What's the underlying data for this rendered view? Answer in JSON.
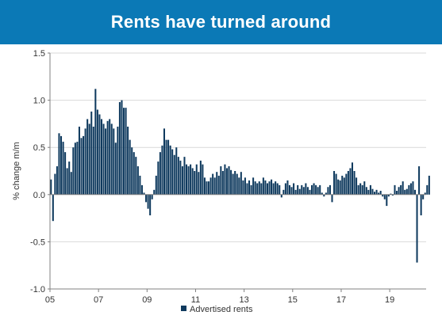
{
  "chart_data": {
    "type": "bar",
    "title": "Rents have turned around",
    "ylabel": "% change m/m",
    "xlabel": "",
    "ylim": [
      -1.0,
      1.5
    ],
    "yticks": [
      -1.0,
      -0.5,
      0.0,
      0.5,
      1.0,
      1.5
    ],
    "ytick_labels": [
      "-1.0",
      "-0.5",
      "0.0",
      "0.5",
      "1.0",
      "1.5"
    ],
    "xtick_labels": [
      "05",
      "07",
      "09",
      "11",
      "13",
      "15",
      "17",
      "19"
    ],
    "xtick_years": [
      2005,
      2007,
      2009,
      2011,
      2013,
      2015,
      2017,
      2019
    ],
    "x_start": "2005-01",
    "x_end": "2020-06",
    "grid": "horizontal",
    "legend_position": "bottom-center",
    "series": [
      {
        "name": "Advertised rents",
        "color": "#0f3a5e",
        "start": "2005-01",
        "values": [
          0.16,
          -0.28,
          0.22,
          0.3,
          0.65,
          0.62,
          0.56,
          0.45,
          0.28,
          0.35,
          0.24,
          0.5,
          0.55,
          0.56,
          0.72,
          0.6,
          0.62,
          0.7,
          0.8,
          0.75,
          0.88,
          0.72,
          1.12,
          0.9,
          0.85,
          0.8,
          0.75,
          0.7,
          0.78,
          0.8,
          0.75,
          0.7,
          0.55,
          0.72,
          0.98,
          1.0,
          0.92,
          0.92,
          0.72,
          0.58,
          0.5,
          0.45,
          0.4,
          0.3,
          0.2,
          0.1,
          0.02,
          -0.08,
          -0.15,
          -0.22,
          -0.05,
          0.05,
          0.2,
          0.35,
          0.45,
          0.52,
          0.7,
          0.58,
          0.58,
          0.52,
          0.48,
          0.42,
          0.5,
          0.4,
          0.36,
          0.3,
          0.4,
          0.32,
          0.3,
          0.32,
          0.28,
          0.25,
          0.32,
          0.24,
          0.36,
          0.32,
          0.18,
          0.14,
          0.14,
          0.18,
          0.22,
          0.18,
          0.24,
          0.2,
          0.3,
          0.25,
          0.32,
          0.28,
          0.3,
          0.26,
          0.22,
          0.25,
          0.22,
          0.18,
          0.24,
          0.15,
          0.18,
          0.12,
          0.15,
          0.1,
          0.18,
          0.14,
          0.12,
          0.14,
          0.12,
          0.18,
          0.15,
          0.12,
          0.14,
          0.16,
          0.12,
          0.14,
          0.12,
          0.1,
          -0.03,
          0.05,
          0.12,
          0.15,
          0.1,
          0.08,
          0.12,
          0.05,
          0.1,
          0.06,
          0.1,
          0.08,
          0.12,
          0.08,
          0.05,
          0.1,
          0.12,
          0.1,
          0.08,
          0.1,
          0.02,
          -0.02,
          0.02,
          0.08,
          0.1,
          -0.08,
          0.25,
          0.22,
          0.16,
          0.15,
          0.2,
          0.18,
          0.22,
          0.25,
          0.28,
          0.34,
          0.25,
          0.18,
          0.1,
          0.12,
          0.1,
          0.14,
          0.08,
          0.05,
          0.1,
          0.06,
          0.03,
          0.05,
          0.02,
          0.04,
          -0.02,
          -0.05,
          -0.12,
          -0.02,
          0.01,
          -0.01,
          0.1,
          0.04,
          0.08,
          0.1,
          0.14,
          0.05,
          0.06,
          0.1,
          0.12,
          0.14,
          0.05,
          -0.72,
          0.3,
          -0.22,
          -0.05,
          0.02,
          0.1,
          0.2
        ]
      }
    ]
  }
}
